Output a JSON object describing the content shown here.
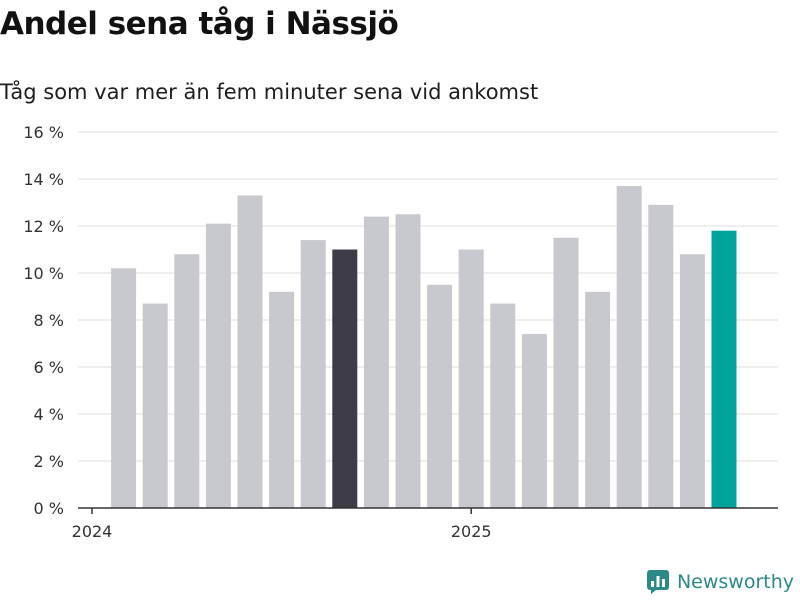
{
  "header": {
    "title": "Andel sena tåg i Nässjö",
    "subtitle": "Tåg som var mer än fem minuter sena vid ankomst"
  },
  "brand": {
    "name": "Newsworthy",
    "icon": "newsworthy-logo-icon",
    "color": "#2b8a87"
  },
  "colors": {
    "bar": "#c8c8cf",
    "highlight_dark": "#3e3c47",
    "highlight_accent": "#00a39a",
    "grid": "#dddddd",
    "axis": "#333333"
  },
  "chart_data": {
    "type": "bar",
    "title": "Andel sena tåg i Nässjö",
    "subtitle": "Tåg som var mer än fem minuter sena vid ankomst",
    "xlabel": "",
    "ylabel": "",
    "ylim": [
      0,
      16
    ],
    "yticks": [
      0,
      2,
      4,
      6,
      8,
      10,
      12,
      14,
      16
    ],
    "ytick_labels": [
      "0 %",
      "2 %",
      "4 %",
      "6 %",
      "8 %",
      "10 %",
      "12 %",
      "14 %",
      "16 %"
    ],
    "x_tick_labels": [
      {
        "label": "2024",
        "month": "2024-01"
      },
      {
        "label": "2025",
        "month": "2025-01"
      }
    ],
    "categories": [
      "2024-02",
      "2024-03",
      "2024-04",
      "2024-05",
      "2024-06",
      "2024-07",
      "2024-08",
      "2024-09",
      "2024-10",
      "2024-11",
      "2024-12",
      "2025-01",
      "2025-02",
      "2025-03",
      "2025-04",
      "2025-05",
      "2025-06",
      "2025-07",
      "2025-08",
      "2025-09"
    ],
    "values": [
      10.2,
      8.7,
      10.8,
      12.1,
      13.3,
      9.2,
      11.4,
      11.0,
      12.4,
      12.5,
      9.5,
      11.0,
      8.7,
      7.4,
      11.5,
      9.2,
      13.7,
      12.9,
      10.8,
      11.8
    ],
    "highlight": {
      "2024-09": "dark",
      "2025-09": "accent"
    },
    "grid": true,
    "legend": "none"
  }
}
